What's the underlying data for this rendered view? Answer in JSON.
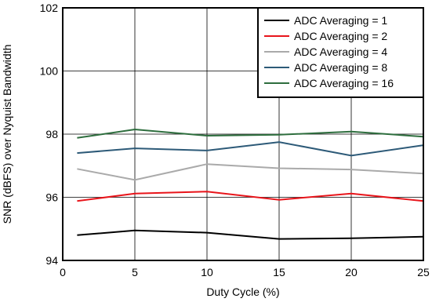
{
  "chart_data": {
    "type": "line",
    "xlabel": "Duty Cycle (%)",
    "ylabel": "SNR (dBFS) over Nyquist Bandwidth",
    "xlim": [
      0,
      25
    ],
    "ylim": [
      94,
      102
    ],
    "xticks": [
      0,
      5,
      10,
      15,
      20,
      25
    ],
    "yticks": [
      94,
      96,
      98,
      100,
      102
    ],
    "grid": true,
    "legend_position": "top-right",
    "x": [
      1,
      5,
      10,
      15,
      20,
      25
    ],
    "series": [
      {
        "name": "ADC Averaging = 1",
        "color": "#000000",
        "values": [
          94.8,
          94.95,
          94.88,
          94.68,
          94.7,
          94.75
        ]
      },
      {
        "name": "ADC Averaging = 2",
        "color": "#e8151b",
        "values": [
          95.88,
          96.12,
          96.18,
          95.92,
          96.12,
          95.88
        ]
      },
      {
        "name": "ADC Averaging = 4",
        "color": "#aaaaaa",
        "values": [
          96.9,
          96.55,
          97.05,
          96.92,
          96.88,
          96.75
        ]
      },
      {
        "name": "ADC Averaging = 8",
        "color": "#2d5a78",
        "values": [
          97.4,
          97.55,
          97.48,
          97.75,
          97.32,
          97.65
        ]
      },
      {
        "name": "ADC Averaging = 16",
        "color": "#2e6e3e",
        "values": [
          97.88,
          98.15,
          97.95,
          97.98,
          98.08,
          97.92
        ]
      }
    ]
  }
}
